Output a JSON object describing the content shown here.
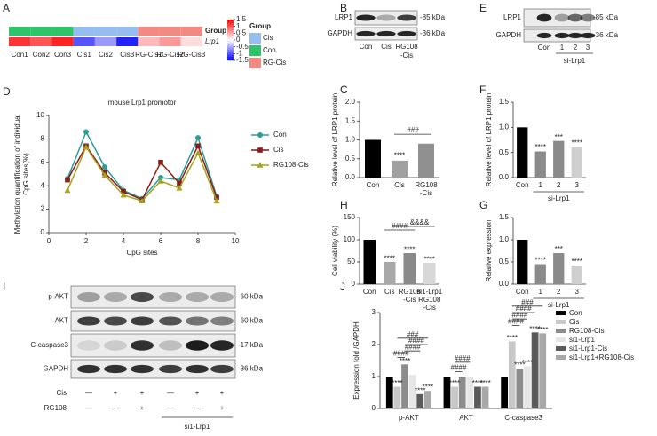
{
  "panel_labels": [
    "A",
    "B",
    "E",
    "D",
    "C",
    "F",
    "H",
    "G",
    "I",
    "J"
  ],
  "blots": [
    {
      "rows": [
        {
          "label": "LRP1",
          "kda": "-85 kDa"
        },
        {
          "label": "GAPDH",
          "kda": "-36 kDa"
        }
      ],
      "lanes": [
        "Con",
        "Cis",
        [
          "RG108",
          "-Cis"
        ]
      ]
    },
    {
      "rows": [
        {
          "label": "LRP1",
          "kda": "-85 kDa"
        },
        {
          "label": "GAPDH",
          "kda": "-36 kDa"
        }
      ],
      "lanes": [
        "Con",
        "1",
        "2",
        "3"
      ],
      "group_label": "si-Lrp1"
    },
    {
      "rows": [
        {
          "label": "p-AKT",
          "kda": "-60 kDa"
        },
        {
          "label": "AKT",
          "kda": "-60 kDa"
        },
        {
          "label": "C-caspase3",
          "kda": "-17 kDa"
        },
        {
          "label": "GAPDH",
          "kda": "-36 kDa"
        }
      ],
      "conditions": [
        {
          "label": "Cis",
          "signs": [
            "—",
            "+",
            "+",
            "—",
            "+",
            "+"
          ]
        },
        {
          "label": "RG108",
          "signs": [
            "—",
            "—",
            "+",
            "—",
            "—",
            "+"
          ]
        }
      ],
      "group_label": "si1-Lrp1"
    }
  ],
  "chart_data": [
    {
      "type": "heatmap",
      "row_labels": [
        "Group",
        "Lrp1"
      ],
      "columns": [
        "Con1",
        "Con2",
        "Con3",
        "Cis1",
        "Cis2",
        "Cis3",
        "RG-Cis1",
        "RG-Cis2",
        "RG-Cis3"
      ],
      "group_colors": [
        "#2fc46a",
        "#2fc46a",
        "#2fc46a",
        "#96bdf0",
        "#96bdf0",
        "#96bdf0",
        "#f28a82",
        "#f28a82",
        "#f28a82"
      ],
      "values": [
        1.2,
        1.0,
        1.3,
        -1.0,
        -0.6,
        -1.3,
        0.4,
        0.6,
        0.2
      ],
      "clim": [
        -1.5,
        1.5
      ],
      "colorbar_ticks": [
        1.5,
        1,
        0.5,
        0,
        -0.5,
        -1,
        -1.5
      ],
      "legend_title": "Group",
      "legend": [
        {
          "name": "Cis",
          "color": "#96bdf0"
        },
        {
          "name": "Con",
          "color": "#2fc46a"
        },
        {
          "name": "RG-Cis",
          "color": "#f28a82"
        }
      ]
    },
    {
      "type": "line",
      "title": "mouse Lrp1 promotor",
      "xlabel": "CpG sites",
      "ylabel": [
        "Methylation quantification of individual",
        "CpG sites(%)"
      ],
      "x": [
        1,
        2,
        3,
        4,
        5,
        6,
        7,
        8,
        9
      ],
      "xlim": [
        0,
        10
      ],
      "xticks": [
        0,
        2,
        4,
        6,
        8,
        10
      ],
      "ylim": [
        0,
        10
      ],
      "yticks": [
        0,
        2,
        4,
        6,
        8,
        10
      ],
      "series": [
        {
          "name": "Con",
          "color": "#2a9d98",
          "marker": "circle",
          "values": [
            4.6,
            8.6,
            5.6,
            3.6,
            2.9,
            4.7,
            4.5,
            8.1,
            3.1
          ]
        },
        {
          "name": "Cis",
          "color": "#8b1a1a",
          "marker": "square",
          "values": [
            4.5,
            7.4,
            5.1,
            3.5,
            2.8,
            6.0,
            4.2,
            7.4,
            3.0
          ]
        },
        {
          "name": "RG108-Cis",
          "color": "#a3a31c",
          "marker": "triangle",
          "values": [
            3.6,
            7.3,
            4.9,
            3.2,
            2.7,
            4.4,
            3.8,
            6.8,
            2.7
          ]
        }
      ]
    },
    {
      "type": "bar",
      "ylabel": "Relative level of LRP1 protein",
      "categories": [
        "Con",
        "Cis",
        [
          "RG108",
          "-Cis"
        ]
      ],
      "values": [
        1.0,
        0.45,
        0.9
      ],
      "colors": [
        "#000000",
        "#a0a0a0",
        "#909090"
      ],
      "ylim": [
        0,
        2
      ],
      "yticks": [
        {
          "value": 0,
          "label": "0.0"
        },
        0.5,
        {
          "value": 1,
          "label": "1.0"
        },
        1.5,
        {
          "value": 2,
          "label": "2.0"
        }
      ],
      "annotations": [
        "****",
        "###"
      ]
    },
    {
      "type": "bar",
      "ylabel": "Relative level of LRP1 protein",
      "xlabel": "si-Lrp1",
      "categories": [
        "Con",
        "1",
        "2",
        "3"
      ],
      "values": [
        1.0,
        0.52,
        0.73,
        0.6
      ],
      "colors": [
        "#000000",
        "#8a8a8a",
        "#8a8a8a",
        "#cfcfcf"
      ],
      "ylim": [
        0,
        1.5
      ],
      "yticks": [
        {
          "value": 0,
          "label": "0.0"
        },
        0.5,
        {
          "value": 1,
          "label": "1.0"
        },
        1.5
      ],
      "annotations": [
        "****",
        "***",
        "****"
      ]
    },
    {
      "type": "bar",
      "ylabel": "Cell viability (%)",
      "categories": [
        "Con",
        "Cis",
        [
          "RG108",
          "-Cis"
        ],
        [
          "si1-Lrp1",
          "RG108",
          "-Cis"
        ]
      ],
      "values": [
        100,
        50,
        70,
        48
      ],
      "colors": [
        "#000000",
        "#a8a8a8",
        "#8a8a8a",
        "#d8d8d8"
      ],
      "ylim": [
        0,
        150
      ],
      "yticks": [
        0,
        50,
        100,
        150
      ],
      "annotations": [
        "****",
        "****",
        "****",
        "####",
        "&&&&"
      ]
    },
    {
      "type": "bar",
      "ylabel": "Relative expression",
      "xlabel": "si-Lrp1",
      "categories": [
        "Con",
        "1",
        "2",
        "3"
      ],
      "values": [
        1.0,
        0.45,
        0.7,
        0.42
      ],
      "colors": [
        "#000000",
        "#8a8a8a",
        "#8a8a8a",
        "#cfcfcf"
      ],
      "ylim": [
        0,
        1.5
      ],
      "yticks": [
        {
          "value": 0,
          "label": "0.0"
        },
        0.5,
        {
          "value": 1,
          "label": "1.0"
        },
        1.5
      ],
      "annotations": [
        "****",
        "***",
        "****"
      ]
    },
    {
      "type": "grouped_bar",
      "ylabel": "Expression fold /GAPDH",
      "categories": [
        "p-AKT",
        "AKT",
        "C-caspase3"
      ],
      "ylim": [
        0,
        3
      ],
      "yticks": [
        0,
        1,
        2,
        3
      ],
      "series": [
        {
          "name": "Con",
          "color": "#000000",
          "values": [
            1.0,
            1.0,
            1.0
          ]
        },
        {
          "name": "Cis",
          "color": "#c8c8c8",
          "values": [
            0.68,
            0.68,
            2.1
          ]
        },
        {
          "name": "RG108-Cis",
          "color": "#8c8c8c",
          "values": [
            1.38,
            1.0,
            1.25
          ]
        },
        {
          "name": "si1-Lrp1",
          "color": "#e6e6e6",
          "values": [
            1.05,
            0.97,
            1.32
          ]
        },
        {
          "name": "si1-Lrp1-Cis",
          "color": "#5a5a5a",
          "values": [
            0.45,
            0.68,
            2.38
          ]
        },
        {
          "name": "si1-Lrp1+RG108-Cis",
          "color": "#a8a8a8",
          "values": [
            0.55,
            0.68,
            2.35
          ]
        }
      ],
      "annotations": [
        "****",
        "****",
        "****",
        "****",
        "####",
        "####",
        "####",
        "###",
        "****",
        "****",
        "****",
        "####",
        "####",
        "****",
        "****",
        "****",
        "****",
        "****",
        "####",
        "####",
        "####",
        "###"
      ]
    }
  ]
}
